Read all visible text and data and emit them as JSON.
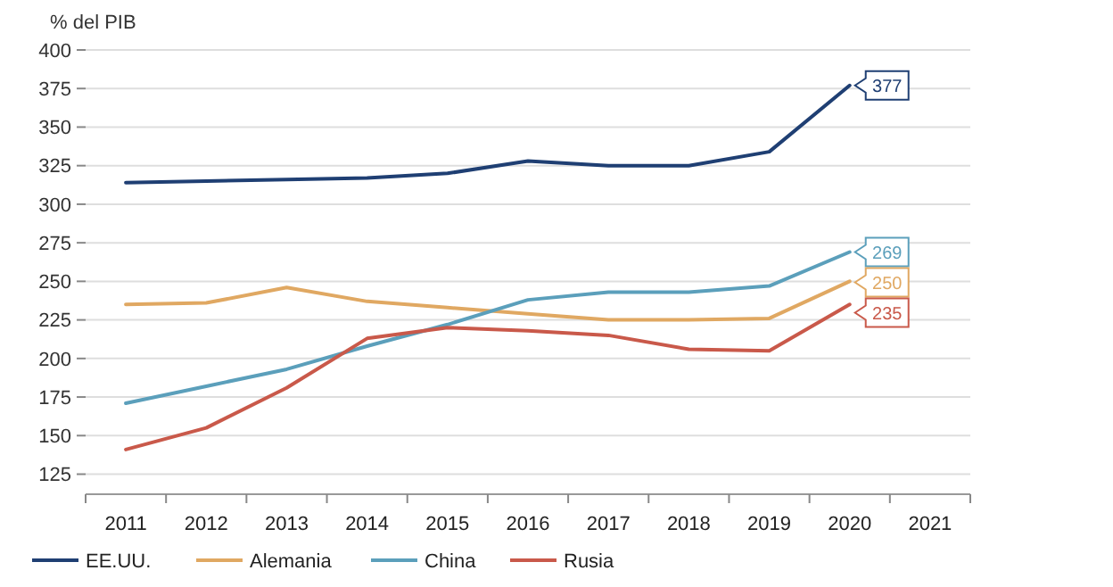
{
  "chart_data": {
    "type": "line",
    "ylabel": "% del PIB",
    "categories": [
      "2011",
      "2012",
      "2013",
      "2014",
      "2015",
      "2016",
      "2017",
      "2018",
      "2019",
      "2020",
      "2021"
    ],
    "series": [
      {
        "name": "EE.UU.",
        "color": "#1f3f73",
        "values": [
          314,
          315,
          316,
          317,
          320,
          328,
          325,
          325,
          334,
          377,
          null
        ],
        "value_labels": [
          null,
          null,
          null,
          null,
          null,
          null,
          null,
          null,
          null,
          "377",
          null
        ]
      },
      {
        "name": "Alemania",
        "color": "#e0a862",
        "values": [
          235,
          236,
          246,
          237,
          233,
          229,
          225,
          225,
          226,
          250,
          null
        ],
        "value_labels": [
          null,
          null,
          null,
          null,
          null,
          null,
          null,
          null,
          null,
          "250",
          null
        ]
      },
      {
        "name": "China",
        "color": "#5b9fbb",
        "values": [
          171,
          182,
          193,
          208,
          222,
          238,
          243,
          243,
          247,
          269,
          null
        ],
        "value_labels": [
          null,
          null,
          null,
          null,
          null,
          null,
          null,
          null,
          null,
          "269",
          null
        ]
      },
      {
        "name": "Rusia",
        "color": "#c9594a",
        "values": [
          141,
          155,
          181,
          213,
          220,
          218,
          215,
          206,
          205,
          235,
          null
        ],
        "value_labels": [
          null,
          null,
          null,
          null,
          null,
          null,
          null,
          null,
          null,
          "235",
          null
        ]
      }
    ],
    "ylim": [
      112,
      400
    ],
    "yticks": [
      125,
      150,
      175,
      200,
      225,
      250,
      275,
      300,
      325,
      350,
      375,
      400
    ],
    "grid": "y",
    "legend": "bottom left"
  }
}
